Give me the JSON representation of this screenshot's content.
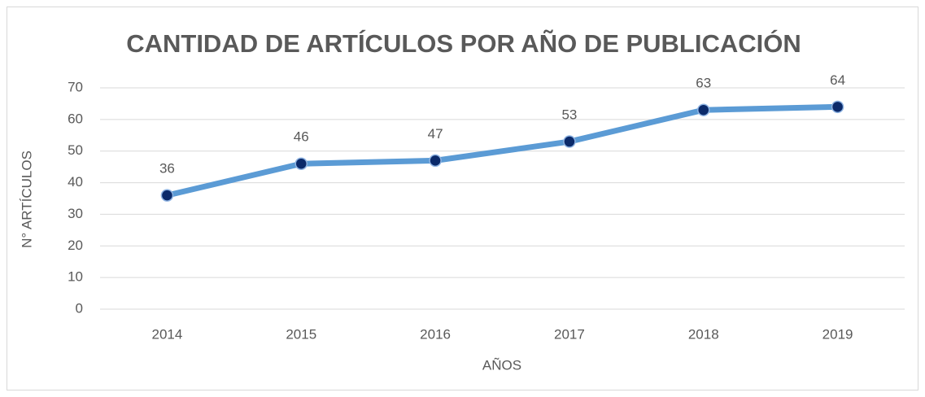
{
  "chart_data": {
    "type": "line",
    "title": "CANTIDAD DE ARTÍCULOS POR AÑO DE PUBLICACIÓN",
    "x_label": "AÑOS",
    "y_label": "N° ARTÍCULOS",
    "categories": [
      "2014",
      "2015",
      "2016",
      "2017",
      "2018",
      "2019"
    ],
    "values": [
      36,
      46,
      47,
      53,
      63,
      64
    ],
    "color": "#5b9bd5",
    "marker_color": "#0b2a6a",
    "ylim": [
      0,
      70
    ],
    "yticks": [
      0,
      10,
      20,
      30,
      40,
      50,
      60,
      70
    ],
    "grid": true
  }
}
